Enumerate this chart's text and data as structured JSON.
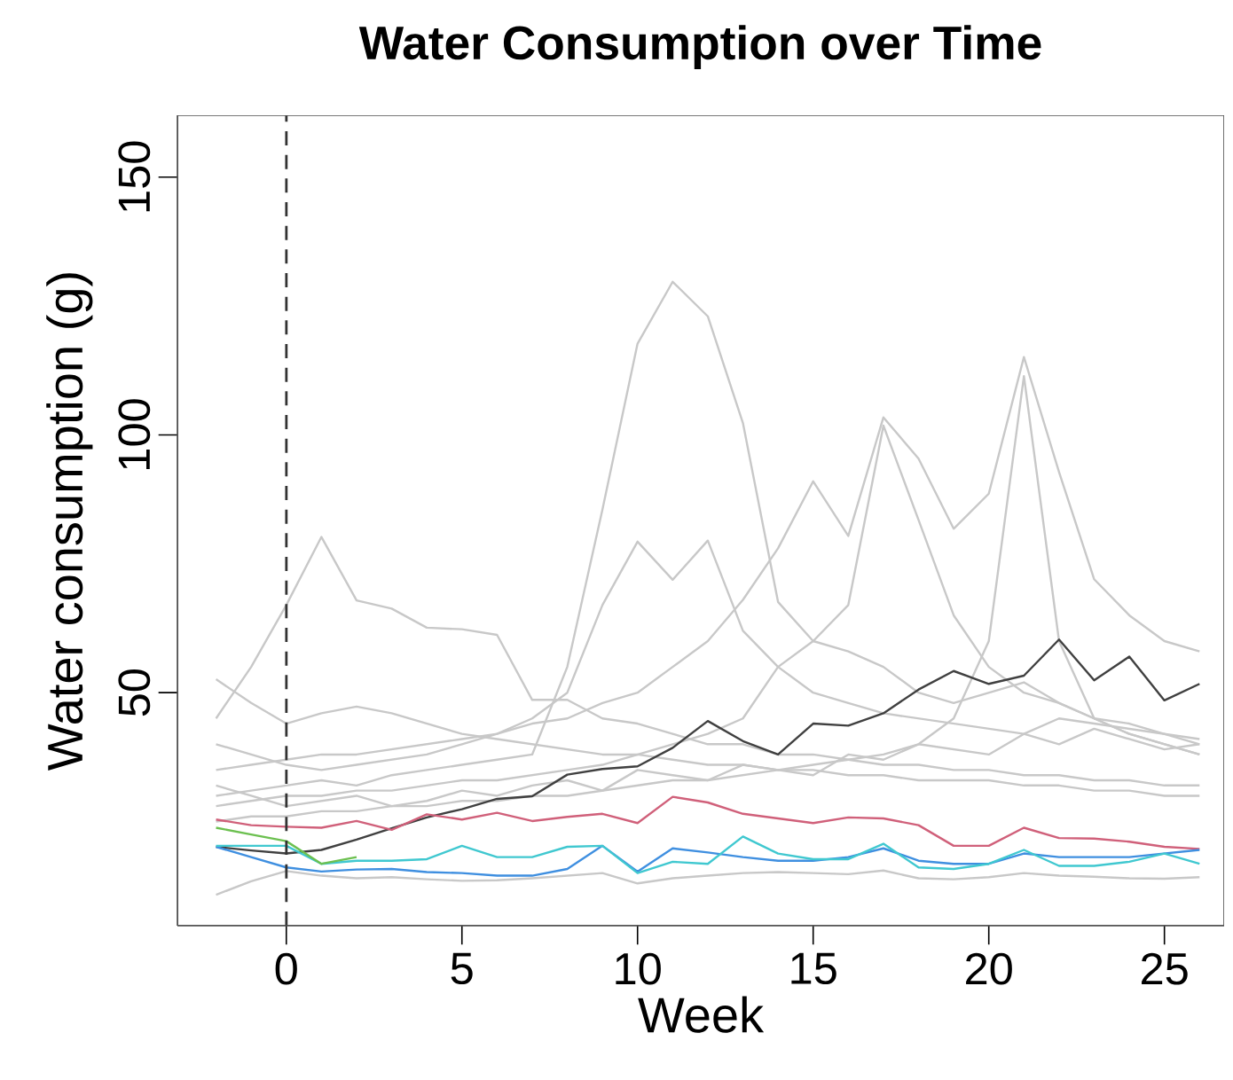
{
  "chart_data": {
    "type": "line",
    "title": "Water Consumption over Time",
    "xlabel": "Week",
    "ylabel": "Water consumption (g)",
    "x": [
      -2,
      -1,
      0,
      1,
      2,
      3,
      4,
      5,
      6,
      7,
      8,
      9,
      10,
      11,
      12,
      13,
      14,
      15,
      16,
      17,
      18,
      19,
      20,
      21,
      22,
      23,
      24,
      25,
      26
    ],
    "xlim": [
      -3.1,
      26.7
    ],
    "ylim": [
      4.8,
      162
    ],
    "xticks": [
      0,
      5,
      10,
      15,
      20,
      25
    ],
    "yticks": [
      50,
      100,
      150
    ],
    "grid": false,
    "marker": "none",
    "line_style": "solid",
    "ref_lines": [
      {
        "axis": "x",
        "value": 0,
        "color": "#333333",
        "line_style": "dashed"
      }
    ],
    "series": [
      {
        "color": "#c8c8c8",
        "values": [
          30,
          31,
          32,
          33,
          32,
          34,
          35,
          36,
          37,
          38,
          55,
          85.5,
          117.7,
          129.7,
          123,
          102.3,
          67.6,
          60,
          58,
          55,
          50,
          48,
          50,
          52,
          48,
          45,
          44,
          42,
          40
        ]
      },
      {
        "color": "#c8c8c8",
        "values": [
          35,
          36,
          37,
          38,
          38,
          39,
          40,
          41,
          42,
          45,
          50,
          67,
          79.3,
          71.9,
          79.5,
          62,
          55,
          50,
          48,
          46,
          45,
          44,
          43,
          42,
          45,
          44,
          43,
          42,
          41
        ]
      },
      {
        "color": "#c8c8c8",
        "values": [
          40,
          38,
          36,
          35,
          36,
          37,
          38,
          40,
          42,
          44,
          45,
          48,
          50,
          55,
          60,
          68,
          78,
          91,
          80.4,
          103.4,
          95.4,
          81.8,
          88.6,
          115.1,
          92.8,
          72,
          65,
          60,
          58
        ]
      },
      {
        "color": "#c8c8c8",
        "values": [
          28,
          29,
          30,
          30,
          31,
          31,
          32,
          33,
          33,
          34,
          35,
          36,
          38,
          40,
          42,
          45,
          55,
          60,
          67,
          101.8,
          83.5,
          65,
          55,
          50,
          48,
          45,
          42,
          40,
          38
        ]
      },
      {
        "color": "#c8c8c8",
        "values": [
          25,
          26,
          26,
          27,
          27,
          28,
          28,
          29,
          29,
          30,
          30,
          31,
          32,
          33,
          33,
          34,
          35,
          36,
          37,
          38,
          40,
          45,
          60,
          111.4,
          60,
          45,
          42,
          40,
          38
        ]
      },
      {
        "color": "#c8c8c8",
        "values": [
          45,
          55,
          67,
          80.2,
          67.9,
          66.3,
          62.6,
          62.3,
          61.2,
          48.6,
          48.6,
          45,
          44,
          42,
          40,
          40,
          38,
          38,
          37,
          36,
          36,
          35,
          35,
          34,
          34,
          33,
          33,
          32,
          32
        ]
      },
      {
        "color": "#c8c8c8",
        "values": [
          52.6,
          48,
          44,
          46,
          47.3,
          46,
          44,
          42,
          41,
          40,
          39,
          38,
          38,
          37,
          36,
          36,
          35,
          35,
          34,
          34,
          33,
          33,
          33,
          32,
          32,
          31,
          31,
          30,
          30
        ]
      },
      {
        "color": "#c8c8c8",
        "values": [
          10.8,
          13.4,
          15.4,
          14.5,
          14,
          14.2,
          13.8,
          13.5,
          13.6,
          14,
          14.5,
          15,
          13,
          14,
          14.5,
          15,
          15.2,
          15,
          14.8,
          15.5,
          14,
          13.8,
          14.2,
          15,
          14.5,
          14.3,
          14,
          13.9,
          14.2
        ]
      },
      {
        "color": "#c8c8c8",
        "values": [
          32,
          30,
          28,
          29,
          30,
          28,
          29,
          31,
          30,
          32,
          33,
          31,
          35,
          34,
          33,
          36,
          35,
          34,
          38,
          37,
          40,
          39,
          38,
          42,
          40,
          43,
          41,
          39,
          40
        ]
      },
      {
        "color": "#404040",
        "values": [
          20.1,
          19.4,
          18.8,
          19.5,
          21.5,
          23.7,
          25.8,
          27.4,
          29.4,
          29.9,
          34.1,
          35.2,
          35.7,
          39.3,
          44.5,
          40.6,
          38,
          44,
          43.6,
          46,
          50.6,
          54.2,
          51.7,
          53.3,
          60.3,
          52.4,
          57,
          48.5,
          51.7
        ]
      },
      {
        "color": "#d0607a",
        "values": [
          25.4,
          24.3,
          24,
          23.8,
          25.1,
          23.4,
          26.4,
          25.4,
          26.7,
          25.1,
          25.9,
          26.5,
          24.7,
          29.8,
          28.7,
          26.5,
          25.6,
          24.7,
          25.8,
          25.6,
          24.3,
          20.3,
          20.3,
          23.8,
          21.8,
          21.7,
          21.1,
          20.1,
          19.7
        ]
      },
      {
        "color": "#3f8fe0",
        "values": [
          20.1,
          18.1,
          16.1,
          15.3,
          15.7,
          15.8,
          15.2,
          15,
          14.5,
          14.5,
          15.8,
          20.3,
          15.3,
          19.8,
          19,
          18.1,
          17.4,
          17.4,
          18.1,
          19.8,
          17.4,
          16.8,
          16.8,
          18.8,
          18.1,
          18.1,
          18.1,
          18.8,
          19.5
        ]
      },
      {
        "color": "#40c8d0",
        "values": [
          20.3,
          20.3,
          20.3,
          16.8,
          17.4,
          17.4,
          17.7,
          20.3,
          18.1,
          18.1,
          20.1,
          20.3,
          15,
          17.2,
          16.8,
          22.1,
          18.8,
          17.7,
          17.7,
          20.7,
          16.1,
          15.8,
          16.8,
          19.5,
          16.4,
          16.4,
          17.2,
          18.8,
          16.8
        ]
      },
      {
        "color": "#6cc050",
        "x": [
          -2,
          -1,
          0,
          1,
          2
        ],
        "values": [
          23.8,
          22.5,
          21.2,
          16.8,
          18.1
        ]
      }
    ]
  }
}
